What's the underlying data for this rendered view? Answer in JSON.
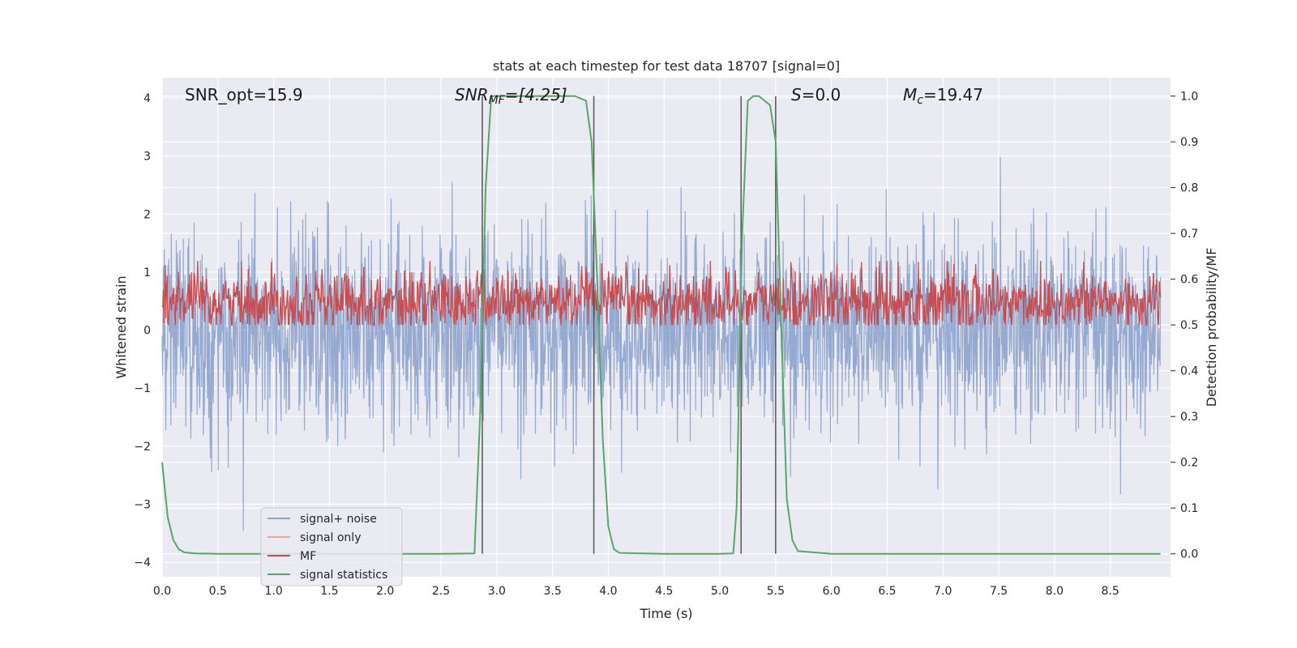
{
  "chart_data": {
    "type": "line",
    "title": "stats at each timestep for test data 18707 [signal=0]",
    "xlabel": "Time (s)",
    "ylabel_left": "Whitened strain",
    "ylabel_right": "Detection probability/MF",
    "xlim": [
      0,
      9.0
    ],
    "ylim_left": [
      -4.25,
      4.35
    ],
    "ylim_right": [
      -0.05,
      1.04
    ],
    "xticks": [
      "0.0",
      "0.5",
      "1.0",
      "1.5",
      "2.0",
      "2.5",
      "3.0",
      "3.5",
      "4.0",
      "4.5",
      "5.0",
      "5.5",
      "6.0",
      "6.5",
      "7.0",
      "7.5",
      "8.0",
      "8.5"
    ],
    "yticks_left": [
      "4",
      "3",
      "2",
      "1",
      "0",
      "−1",
      "−2",
      "−3",
      "−4"
    ],
    "yticks_right": [
      "1.0",
      "0.9",
      "0.8",
      "0.7",
      "0.6",
      "0.5",
      "0.4",
      "0.3",
      "0.2",
      "0.1",
      "0.0"
    ],
    "grid": true,
    "legend_position": "lower-left",
    "annotations": {
      "snr_opt": "SNR_opt=15.9",
      "snr_mf_base": "SNR",
      "snr_mf_sub": "MF",
      "snr_mf_value": "=[4.25]",
      "s_sym": "S",
      "s_value": "=0.0",
      "mc_base": "M",
      "mc_sub": "c",
      "mc_value": "=19.47"
    },
    "vertical_lines_x": [
      2.87,
      3.87,
      5.19,
      5.5
    ],
    "series": [
      {
        "name": "signal+ noise",
        "color": "#8da2cc",
        "axis": "left",
        "kind": "noise",
        "std": 0.85,
        "range": [
          -3.8,
          3.6
        ]
      },
      {
        "name": "signal only",
        "color": "#eaa98e",
        "axis": "left",
        "kind": "flat",
        "values": [
          0,
          0
        ]
      },
      {
        "name": "MF",
        "color": "#c44e52",
        "axis": "right",
        "kind": "noise",
        "mean": 0.55,
        "std": 0.035,
        "range": [
          0.5,
          0.64
        ]
      },
      {
        "name": "signal statistics",
        "color": "#55a868",
        "axis": "right",
        "x": [
          0.0,
          0.05,
          0.1,
          0.15,
          0.2,
          0.3,
          0.5,
          1.0,
          1.5,
          2.0,
          2.5,
          2.8,
          2.85,
          2.9,
          2.95,
          3.0,
          3.5,
          3.7,
          3.8,
          3.85,
          3.9,
          3.95,
          4.0,
          4.05,
          4.1,
          4.5,
          5.0,
          5.12,
          5.15,
          5.2,
          5.25,
          5.3,
          5.35,
          5.45,
          5.5,
          5.55,
          5.6,
          5.65,
          5.7,
          6.0,
          7.0,
          8.0,
          8.95
        ],
        "y": [
          0.2,
          0.08,
          0.03,
          0.01,
          0.003,
          0.001,
          0.0,
          0.0,
          0.0,
          0.0,
          0.0,
          0.001,
          0.3,
          0.8,
          1.0,
          1.0,
          1.0,
          1.0,
          0.99,
          0.9,
          0.6,
          0.25,
          0.06,
          0.01,
          0.002,
          0.0,
          0.0,
          0.001,
          0.1,
          0.7,
          0.99,
          1.0,
          1.0,
          0.98,
          0.9,
          0.5,
          0.12,
          0.03,
          0.006,
          0.0,
          0.0,
          0.0,
          0.0
        ]
      }
    ]
  }
}
